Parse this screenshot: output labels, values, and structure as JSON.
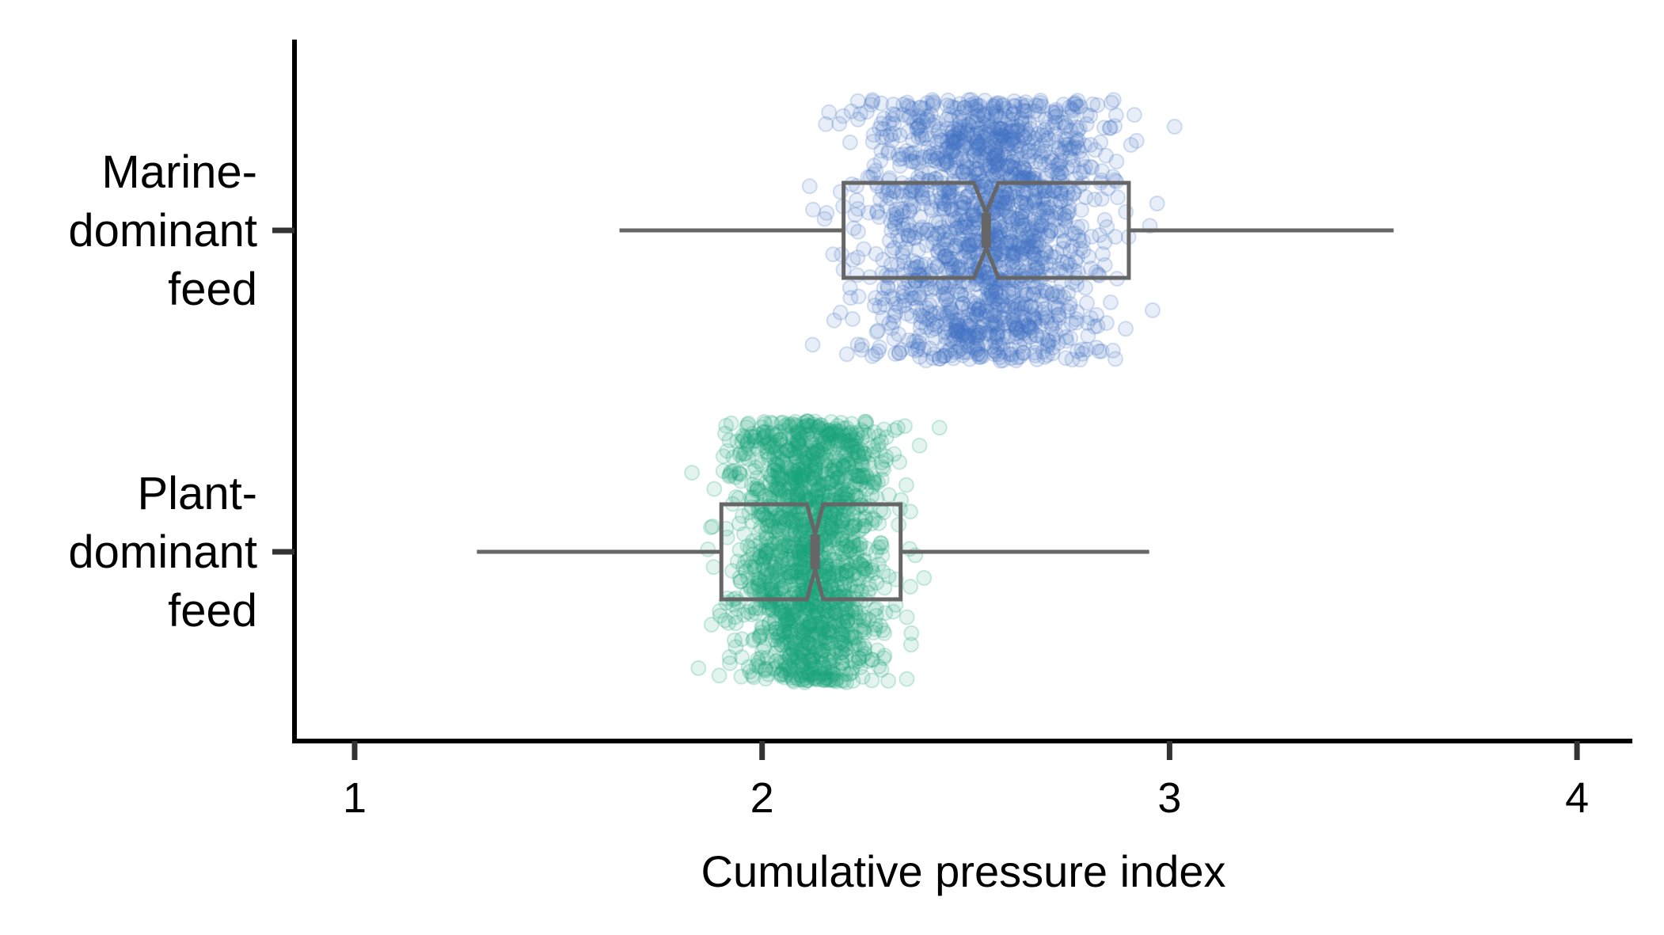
{
  "chart_data": {
    "type": "box",
    "orientation": "horizontal",
    "title": "",
    "xlabel": "Cumulative pressure index",
    "ylabel": "",
    "xlim": [
      0.85,
      4.15
    ],
    "xticks": [
      1,
      2,
      3,
      4
    ],
    "xtick_labels": [
      "1",
      "2",
      "3",
      "4"
    ],
    "notched": true,
    "jitter_points_shown": true,
    "grid": false,
    "legend": "none",
    "box_color": "#666666",
    "categories": [
      {
        "label_lines": [
          "Marine-",
          "dominant",
          "feed"
        ],
        "point_color": "#4472C4",
        "points_range": [
          1.63,
          3.55
        ],
        "min": 1.65,
        "q1": 2.2,
        "median": 2.55,
        "q3": 2.9,
        "max": 3.55,
        "notch_low": 2.52,
        "notch_high": 2.58
      },
      {
        "label_lines": [
          "Plant-",
          "dominant",
          "feed"
        ],
        "point_color": "#1BA37A",
        "points_range": [
          1.2,
          2.95
        ],
        "min": 1.3,
        "q1": 1.9,
        "median": 2.13,
        "q3": 2.34,
        "max": 2.95,
        "notch_low": 2.11,
        "notch_high": 2.15
      }
    ]
  }
}
